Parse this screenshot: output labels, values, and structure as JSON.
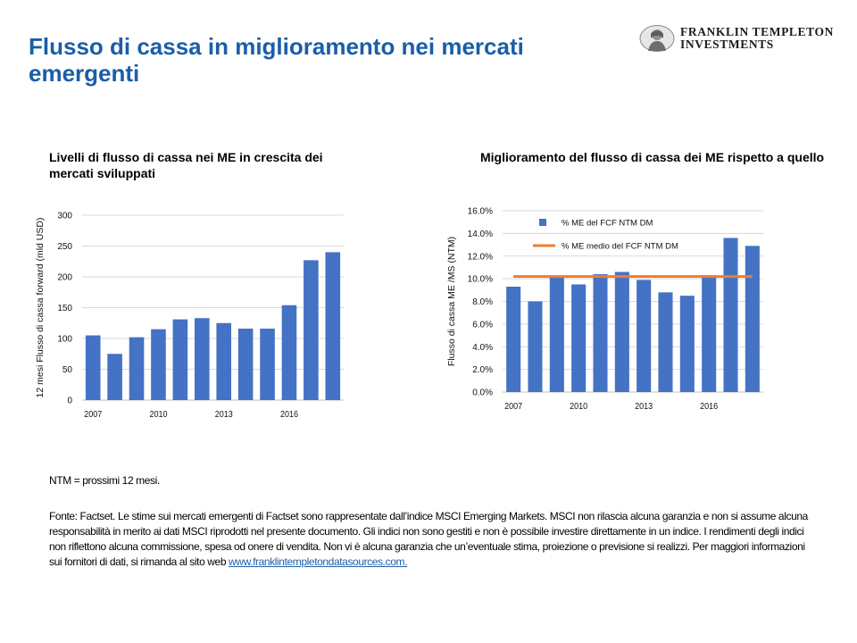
{
  "header": {
    "title": "Flusso di cassa in miglioramento nei mercati emergenti",
    "logo_line1": "FRANKLIN TEMPLETON",
    "logo_line2": "INVESTMENTS"
  },
  "colors": {
    "title": "#1a5ea8",
    "bar": "#4472c4",
    "average_line": "#ed7d31"
  },
  "chart_data": [
    {
      "type": "bar",
      "title": "Livelli di flusso di cassa nei ME in crescita dei mercati sviluppati",
      "ylabel": "12 mesi Flusso di cassa forward  (mld USD)",
      "xlabel": "",
      "x": [
        2007,
        2008,
        2009,
        2010,
        2011,
        2012,
        2013,
        2014,
        2015,
        2016,
        2017,
        2018
      ],
      "x_tick_labels": [
        "2007",
        "2010",
        "2013",
        "2016"
      ],
      "values": [
        105,
        75,
        102,
        115,
        131,
        133,
        125,
        116,
        116,
        154,
        227,
        240
      ],
      "ylim": [
        0,
        300
      ],
      "y_ticks": [
        "0",
        "50",
        "100",
        "150",
        "200",
        "250",
        "300"
      ],
      "grid": true,
      "legend": "none"
    },
    {
      "type": "bar",
      "title": "Miglioramento del flusso di cassa dei ME rispetto a quello",
      "ylabel": "Flusso di cassa ME /MS (NTM)",
      "xlabel": "",
      "x": [
        2007,
        2008,
        2009,
        2010,
        2011,
        2012,
        2013,
        2014,
        2015,
        2016,
        2017,
        2018
      ],
      "x_tick_labels": [
        "2007",
        "2010",
        "2013",
        "2016"
      ],
      "series": [
        {
          "name": "% ME del FCF NTM DM",
          "type": "bar",
          "values": [
            9.3,
            8.0,
            10.1,
            9.5,
            10.4,
            10.6,
            9.9,
            8.8,
            8.5,
            10.3,
            13.6,
            12.9
          ]
        },
        {
          "name": "% ME medio del  FCF NTM DM",
          "type": "line",
          "values": [
            10.2,
            10.2,
            10.2,
            10.2,
            10.2,
            10.2,
            10.2,
            10.2,
            10.2,
            10.2,
            10.2,
            10.2
          ]
        }
      ],
      "ylim": [
        0,
        16
      ],
      "y_ticks": [
        "0.0%",
        "2.0%",
        "4.0%",
        "6.0%",
        "8.0%",
        "10.0%",
        "12.0%",
        "14.0%",
        "16.0%"
      ],
      "grid": true,
      "legend": "top-left"
    }
  ],
  "footer": {
    "ntm_note": "NTM = prossimi 12 mesi.",
    "source_text": "Fonte: Factset. Le stime sui mercati emergenti di Factset sono rappresentate dall’indice MSCI Emerging Markets. MSCI non rilascia alcuna garanzia e non si assume alcuna responsabilità in merito ai dati MSCI riprodotti nel presente documento. Gli indici non sono gestiti e non è possibile investire direttamente in un indice. I rendimenti degli indici non riflettono alcuna commissione, spesa od onere di vendita. Non vi  è alcuna garanzia che un’eventuale stima, proiezione o previsione si realizzi.  Per maggiori informazioni sui fornitori di dati, si rimanda al sito web ",
    "source_link": "www.franklintempletondatasources.com."
  }
}
